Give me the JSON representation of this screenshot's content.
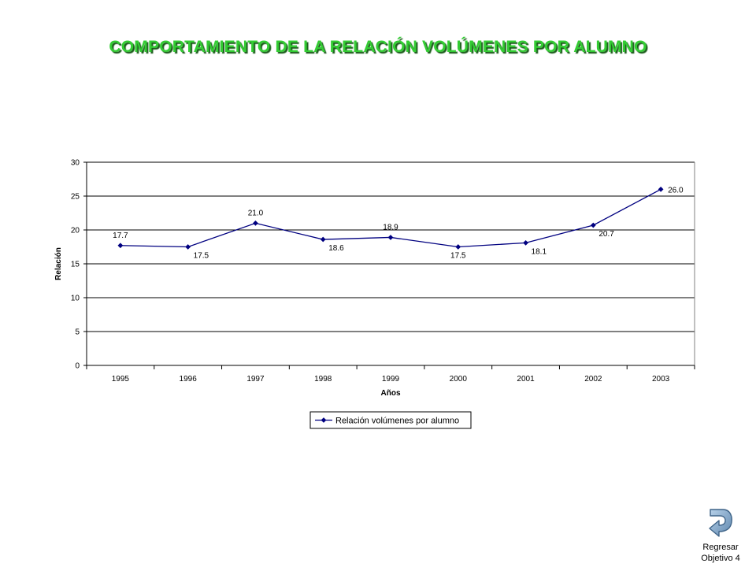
{
  "page": {
    "title": "COMPORTAMIENTO DE LA RELACIÓN VOLÚMENES POR ALUMNO"
  },
  "chart_data": {
    "type": "line",
    "categories": [
      "1995",
      "1996",
      "1997",
      "1998",
      "1999",
      "2000",
      "2001",
      "2002",
      "2003"
    ],
    "series": [
      {
        "name": "Relación volúmenes por alumno",
        "values": [
          17.7,
          17.5,
          21.0,
          18.6,
          18.9,
          17.5,
          18.1,
          20.7,
          26.0
        ],
        "labels": [
          "17.7",
          "17.5",
          "21.0",
          "18.6",
          "18.9",
          "17.5",
          "18.1",
          "20.7",
          "26.0"
        ],
        "color": "#000080"
      }
    ],
    "xlabel": "Años",
    "ylabel": "Relación",
    "ylim": [
      0,
      30
    ],
    "yticks": [
      "0",
      "5",
      "10",
      "15",
      "20",
      "25",
      "30"
    ],
    "grid": true,
    "legend": "bottom"
  },
  "nav": {
    "back_line1": "Regresar",
    "back_line2": "Objetivo 4"
  },
  "icons": {
    "back": "return-arrow-icon"
  }
}
